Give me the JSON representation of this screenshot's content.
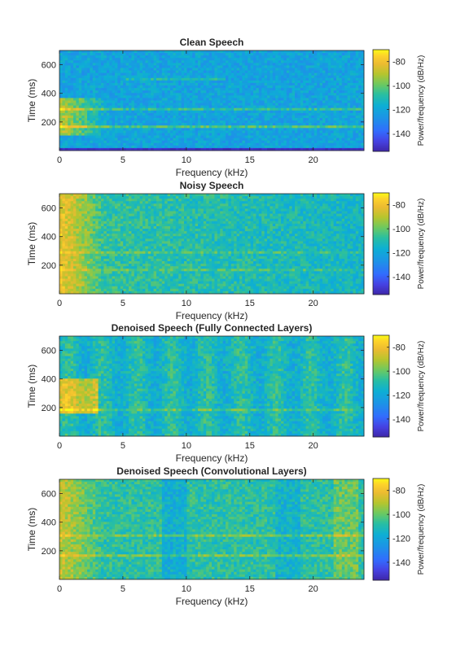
{
  "chart_data": [
    {
      "type": "heatmap",
      "title": "Clean Speech",
      "xlabel": "Frequency (kHz)",
      "ylabel": "Time (ms)",
      "xlim": [
        0,
        24
      ],
      "ylim": [
        0,
        700
      ],
      "xticks": [
        0,
        5,
        10,
        15,
        20
      ],
      "yticks": [
        200,
        400,
        600
      ],
      "colorbar": {
        "label": "Power/frequency (dB/Hz)",
        "ticks": [
          -80,
          -100,
          -120,
          -140
        ],
        "range": [
          -155,
          -70
        ]
      }
    },
    {
      "type": "heatmap",
      "title": "Noisy Speech",
      "xlabel": "Frequency (kHz)",
      "ylabel": "Time (ms)",
      "xlim": [
        0,
        24
      ],
      "ylim": [
        0,
        700
      ],
      "xticks": [
        0,
        5,
        10,
        15,
        20
      ],
      "yticks": [
        200,
        400,
        600
      ],
      "colorbar": {
        "label": "Power/frequency (dB/Hz)",
        "ticks": [
          -80,
          -100,
          -120,
          -140
        ],
        "range": [
          -155,
          -70
        ]
      }
    },
    {
      "type": "heatmap",
      "title": "Denoised Speech (Fully Connected Layers)",
      "xlabel": "Frequency (kHz)",
      "ylabel": "Time (ms)",
      "xlim": [
        0,
        24
      ],
      "ylim": [
        0,
        700
      ],
      "xticks": [
        0,
        5,
        10,
        15,
        20
      ],
      "yticks": [
        200,
        400,
        600
      ],
      "colorbar": {
        "label": "Power/frequency (dB/Hz)",
        "ticks": [
          -80,
          -100,
          -120,
          -140
        ],
        "range": [
          -155,
          -70
        ]
      }
    },
    {
      "type": "heatmap",
      "title": "Denoised Speech (Convolutional Layers)",
      "xlabel": "Frequency (kHz)",
      "ylabel": "Time (ms)",
      "xlim": [
        0,
        24
      ],
      "ylim": [
        0,
        700
      ],
      "xticks": [
        0,
        5,
        10,
        15,
        20
      ],
      "yticks": [
        200,
        400,
        600
      ],
      "colorbar": {
        "label": "Power/frequency (dB/Hz)",
        "ticks": [
          -80,
          -100,
          -120,
          -140
        ],
        "range": [
          -155,
          -70
        ]
      }
    }
  ],
  "colormap": "parula",
  "colors": {
    "low": "#3e26a8",
    "mid": "#1fa8c9",
    "high": "#f9fb15",
    "axis": "#262626"
  }
}
